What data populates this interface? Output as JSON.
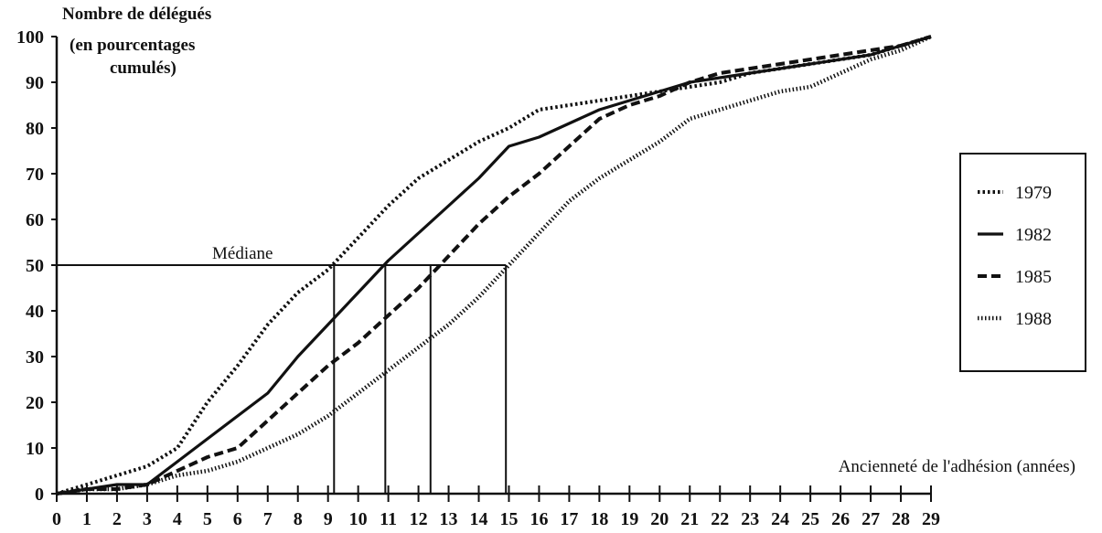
{
  "chart_data": {
    "type": "line",
    "ylabel_lines": [
      "Nombre de délégués",
      "(en pourcentages",
      "cumulés)"
    ],
    "xlabel": "Ancienneté de l'adhésion (années)",
    "xlim": [
      0,
      29
    ],
    "ylim": [
      0,
      100
    ],
    "x_ticks": [
      "0",
      "1",
      "2",
      "3",
      "4",
      "5",
      "6",
      "7",
      "8",
      "9",
      "10",
      "11",
      "12",
      "13",
      "14",
      "15",
      "16",
      "17",
      "18",
      "19",
      "20",
      "21",
      "22",
      "23",
      "24",
      "25",
      "26",
      "27",
      "28",
      "29"
    ],
    "y_ticks": [
      "0",
      "10",
      "20",
      "30",
      "40",
      "50",
      "60",
      "70",
      "80",
      "90",
      "100"
    ],
    "legend_position": "right",
    "median": {
      "label": "Médiane",
      "y": 50,
      "x_values": [
        9.2,
        10.9,
        12.4,
        14.9
      ]
    },
    "series": [
      {
        "name": "1979",
        "style": "dotted",
        "color": "#111111",
        "x": [
          0,
          1,
          2,
          3,
          4,
          5,
          6,
          7,
          8,
          9,
          10,
          11,
          12,
          13,
          14,
          15,
          16,
          17,
          18,
          19,
          20,
          21,
          22,
          23,
          24,
          25,
          26,
          27,
          28,
          29
        ],
        "y": [
          0,
          2,
          4,
          6,
          10,
          20,
          28,
          37,
          44,
          49,
          56,
          63,
          69,
          73,
          77,
          80,
          84,
          85,
          86,
          87,
          88,
          89,
          90,
          92,
          93,
          94,
          95,
          96,
          98,
          100
        ]
      },
      {
        "name": "1982",
        "style": "solid",
        "color": "#111111",
        "x": [
          0,
          1,
          2,
          3,
          4,
          5,
          6,
          7,
          8,
          9,
          10,
          11,
          12,
          13,
          14,
          15,
          16,
          17,
          18,
          19,
          20,
          21,
          22,
          23,
          24,
          25,
          26,
          27,
          28,
          29
        ],
        "y": [
          0,
          1,
          2,
          2,
          7,
          12,
          17,
          22,
          30,
          37,
          44,
          51,
          57,
          63,
          69,
          76,
          78,
          81,
          84,
          86,
          88,
          90,
          91,
          92,
          93,
          94,
          95,
          96,
          98,
          100
        ]
      },
      {
        "name": "1985",
        "style": "dashed",
        "color": "#111111",
        "x": [
          0,
          1,
          2,
          3,
          4,
          5,
          6,
          7,
          8,
          9,
          10,
          11,
          12,
          13,
          14,
          15,
          16,
          17,
          18,
          19,
          20,
          21,
          22,
          23,
          24,
          25,
          26,
          27,
          28,
          29
        ],
        "y": [
          0,
          1,
          1,
          2,
          5,
          8,
          10,
          16,
          22,
          28,
          33,
          39,
          45,
          52,
          59,
          65,
          70,
          76,
          82,
          85,
          87,
          90,
          92,
          93,
          94,
          95,
          96,
          97,
          98,
          100
        ]
      },
      {
        "name": "1988",
        "style": "sparse",
        "color": "#111111",
        "x": [
          0,
          1,
          2,
          3,
          4,
          5,
          6,
          7,
          8,
          9,
          10,
          11,
          12,
          13,
          14,
          15,
          16,
          17,
          18,
          19,
          20,
          21,
          22,
          23,
          24,
          25,
          26,
          27,
          28,
          29
        ],
        "y": [
          0,
          1,
          1,
          2,
          4,
          5,
          7,
          10,
          13,
          17,
          22,
          27,
          32,
          37,
          43,
          50,
          57,
          64,
          69,
          73,
          77,
          82,
          84,
          86,
          88,
          89,
          92,
          95,
          97,
          100
        ]
      }
    ]
  }
}
